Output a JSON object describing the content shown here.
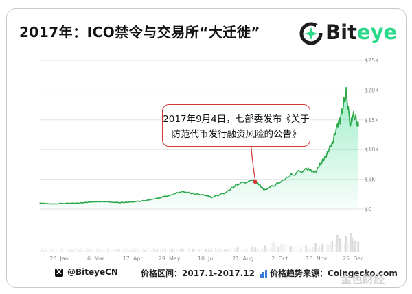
{
  "title": "2017年：ICO禁令与交易所“大迁徙”",
  "logo": {
    "text_main": "Bit",
    "text_accent": "eye",
    "icon": "biteye-logo-icon",
    "accent_color": "#2bd98a"
  },
  "callout": {
    "line1": "2017年9月4日，七部委发布《关于",
    "line2": "防范代币发行融资风险的公告》"
  },
  "footer": {
    "handle": "@BiteyeCN",
    "handle_icon": "x-icon",
    "range": "价格区间：2017.1-2017.12",
    "source_icon": "chart-icon",
    "source": "价格趋势来源：Coingecko.com"
  },
  "watermark": "金色财经",
  "chart_data": {
    "type": "area",
    "x_ticks": [
      "23. Jan",
      "6. Mar",
      "17. Apr",
      "29. May",
      "10. Jul",
      "21. Aug",
      "2. Oct",
      "13. Nov",
      "25. Dec"
    ],
    "y_ticks": [
      "$0",
      "$5K",
      "$10K",
      "$15K",
      "$20K",
      "$25K"
    ],
    "ylim": [
      0,
      25000
    ],
    "x": [
      "2017-01-01",
      "2017-01-15",
      "2017-02-01",
      "2017-02-15",
      "2017-03-01",
      "2017-03-15",
      "2017-04-01",
      "2017-04-15",
      "2017-05-01",
      "2017-05-15",
      "2017-06-01",
      "2017-06-12",
      "2017-06-25",
      "2017-07-10",
      "2017-07-16",
      "2017-08-01",
      "2017-08-15",
      "2017-09-01",
      "2017-09-04",
      "2017-09-15",
      "2017-10-01",
      "2017-10-15",
      "2017-11-01",
      "2017-11-12",
      "2017-11-20",
      "2017-12-01",
      "2017-12-07",
      "2017-12-10",
      "2017-12-17",
      "2017-12-22",
      "2017-12-24",
      "2017-12-27",
      "2017-12-31"
    ],
    "values": [
      1000,
      850,
      980,
      1000,
      1200,
      1250,
      1080,
      1180,
      1400,
      1800,
      2400,
      2950,
      2600,
      2300,
      1950,
      2750,
      4200,
      4800,
      4600,
      3250,
      4350,
      5700,
      6700,
      6300,
      8100,
      10900,
      14200,
      15000,
      19500,
      13800,
      15700,
      15500,
      13900
    ],
    "volume_values": [
      0.05,
      0.04,
      0.05,
      0.05,
      0.06,
      0.06,
      0.05,
      0.06,
      0.08,
      0.12,
      0.18,
      0.2,
      0.15,
      0.14,
      0.12,
      0.16,
      0.25,
      0.3,
      0.28,
      0.35,
      0.25,
      0.3,
      0.4,
      0.5,
      0.45,
      0.6,
      0.9,
      0.7,
      0.85,
      1.0,
      0.75,
      0.6,
      0.55
    ],
    "highlight": {
      "x": "2017-09-04",
      "value": 4600,
      "color": "#d23a3a"
    },
    "line_color": "#2aa84a",
    "fill_color": "#2bd98a",
    "grid": true
  }
}
